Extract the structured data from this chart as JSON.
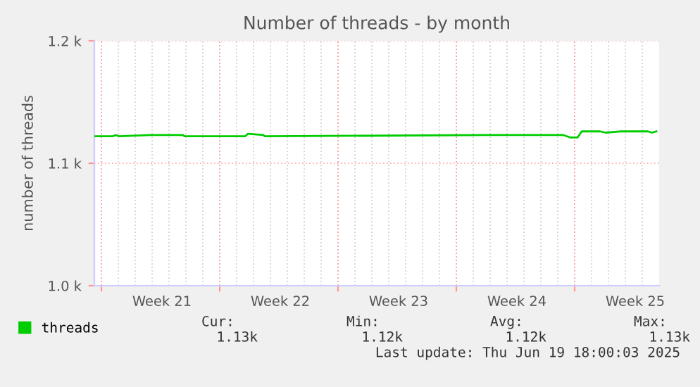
{
  "chart_data": {
    "type": "line",
    "title": "Number of threads - by month",
    "ylabel": "number of threads",
    "x": [
      "2025-05-18T14:00",
      "2025-05-19T16:00",
      "2025-05-19T20:00",
      "2025-05-20T02:00",
      "2025-05-21T22:00",
      "2025-05-23T20:00",
      "2025-05-23T22:00",
      "2025-05-27T12:00",
      "2025-05-27T16:00",
      "2025-05-28T14:00",
      "2025-05-28T16:00",
      "2025-06-10T18:00",
      "2025-06-15T08:00",
      "2025-06-15T18:00",
      "2025-06-16T04:00",
      "2025-06-16T10:00",
      "2025-06-17T12:00",
      "2025-06-17T20:00",
      "2025-06-18T16:00",
      "2025-06-19T12:00",
      "2025-06-20T08:00",
      "2025-06-20T14:00",
      "2025-06-20T20:00"
    ],
    "series": [
      {
        "name": "threads",
        "color": "#00cc00",
        "values": [
          1122,
          1122,
          1123,
          1122,
          1123,
          1123,
          1122,
          1122,
          1124,
          1123,
          1122,
          1123,
          1123,
          1121,
          1121,
          1126,
          1126,
          1125,
          1126,
          1126,
          1126,
          1125,
          1126
        ]
      }
    ],
    "xlim": [
      "2025-05-18T14:00",
      "2025-06-21T00:00"
    ],
    "xticks": [
      {
        "value": "2025-05-19T00:00",
        "label": null
      },
      {
        "value": "2025-05-22T14:00",
        "label": "Week 21"
      },
      {
        "value": "2025-05-26T00:00",
        "label": null
      },
      {
        "value": "2025-05-29T14:00",
        "label": "Week 22"
      },
      {
        "value": "2025-06-02T00:00",
        "label": null
      },
      {
        "value": "2025-06-05T14:00",
        "label": "Week 23"
      },
      {
        "value": "2025-06-09T00:00",
        "label": null
      },
      {
        "value": "2025-06-12T14:00",
        "label": "Week 24"
      },
      {
        "value": "2025-06-16T00:00",
        "label": null
      },
      {
        "value": "2025-06-19T14:00",
        "label": "Week 25"
      }
    ],
    "ylim": [
      1000,
      1200
    ],
    "yticks": [
      {
        "value": 1000,
        "label": "1.0 k"
      },
      {
        "value": 1100,
        "label": "1.1 k"
      },
      {
        "value": 1200,
        "label": "1.2 k"
      }
    ],
    "grid": true,
    "legend": "bottom left",
    "annotations": [
      "Cur:",
      "Min:",
      "Avg:",
      "Max:",
      "1.13k",
      "1.12k",
      "1.12k",
      "1.13k",
      "Last update: Thu Jun 19 18:00:03 2025"
    ]
  }
}
